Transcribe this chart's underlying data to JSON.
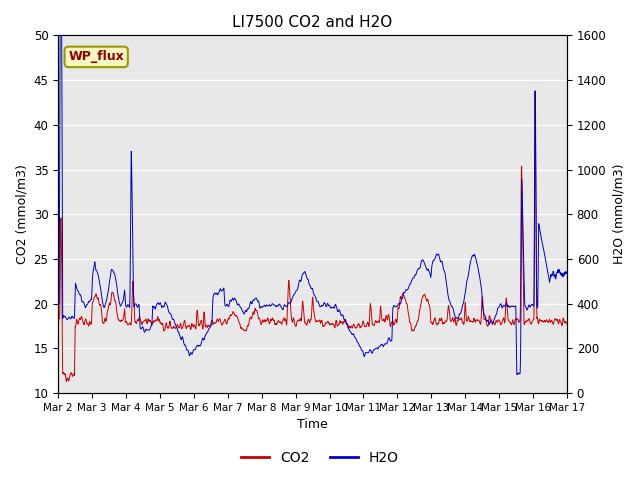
{
  "title": "LI7500 CO2 and H2O",
  "xlabel": "Time",
  "ylabel_left": "CO2 (mmol/m3)",
  "ylabel_right": "H2O (mmol/m3)",
  "ylim_left": [
    10,
    50
  ],
  "ylim_right": [
    0,
    1600
  ],
  "yticks_left": [
    10,
    15,
    20,
    25,
    30,
    35,
    40,
    45,
    50
  ],
  "yticks_right": [
    0,
    200,
    400,
    600,
    800,
    1000,
    1200,
    1400,
    1600
  ],
  "x_tick_labels": [
    "Mar 2",
    "Mar 3",
    "Mar 4",
    "Mar 5",
    "Mar 6",
    "Mar 7",
    "Mar 8",
    "Mar 9",
    "Mar 10",
    "Mar 11",
    "Mar 12",
    "Mar 13",
    "Mar 14",
    "Mar 15",
    "Mar 16",
    "Mar 17"
  ],
  "co2_color": "#cc0000",
  "h2o_color": "#0000cc",
  "bg_color": "#e8e8e8",
  "annotation_text": "WP_flux",
  "legend_co2": "CO2",
  "legend_h2o": "H2O",
  "grid_color": "white",
  "n_points": 2000,
  "seed": 12345
}
